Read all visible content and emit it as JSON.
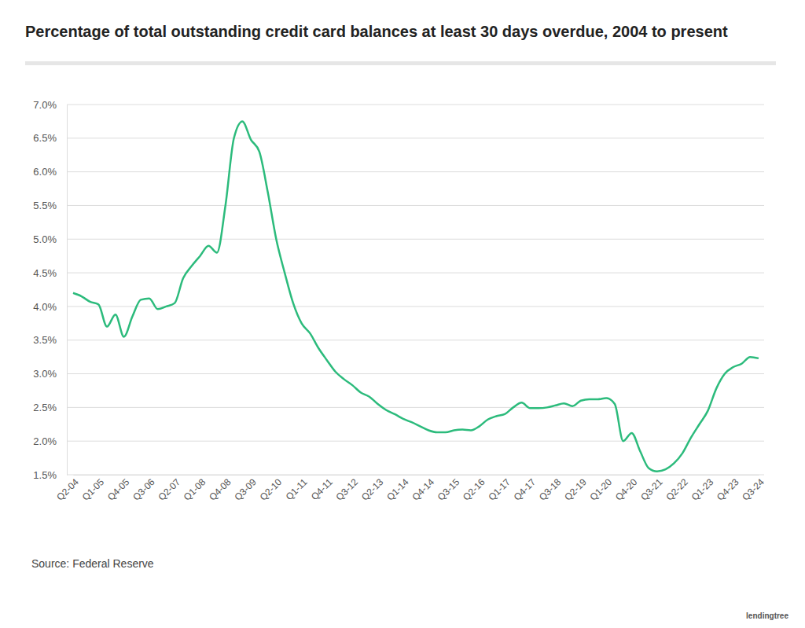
{
  "chart_data": {
    "type": "line",
    "title": "Percentage of total outstanding credit card balances at least 30 days overdue, 2004 to present",
    "source": "Source: Federal Reserve",
    "brand": "lendingtree",
    "color": "#2cbb7c",
    "grid": true,
    "categories": [
      "Q2-04",
      null,
      null,
      "Q1-05",
      null,
      null,
      "Q4-05",
      null,
      null,
      "Q3-06",
      null,
      null,
      "Q2-07",
      null,
      null,
      "Q1-08",
      null,
      null,
      "Q4-08",
      null,
      null,
      "Q3-09",
      null,
      null,
      "Q2-10",
      null,
      null,
      "Q1-11",
      null,
      null,
      "Q4-11",
      null,
      null,
      "Q3-12",
      null,
      null,
      "Q2-13",
      null,
      null,
      "Q1-14",
      null,
      null,
      "Q4-14",
      null,
      null,
      "Q3-15",
      null,
      null,
      "Q2-16",
      null,
      null,
      "Q1-17",
      null,
      null,
      "Q4-17",
      null,
      null,
      "Q3-18",
      null,
      null,
      "Q2-19",
      null,
      null,
      "Q1-20",
      null,
      null,
      "Q4-20",
      null,
      null,
      "Q3-21",
      null,
      null,
      "Q2-22",
      null,
      null,
      "Q1-23",
      null,
      null,
      "Q4-23",
      null,
      null,
      "Q3-24"
    ],
    "values": [
      4.2,
      4.15,
      4.07,
      4.03,
      3.7,
      3.88,
      3.55,
      3.85,
      4.1,
      4.12,
      3.96,
      4.0,
      4.05,
      4.42,
      4.6,
      4.75,
      4.9,
      4.8,
      5.5,
      6.5,
      6.75,
      6.48,
      6.3,
      5.7,
      5.0,
      4.5,
      4.05,
      3.75,
      3.6,
      3.38,
      3.2,
      3.03,
      2.92,
      2.83,
      2.72,
      2.66,
      2.55,
      2.46,
      2.4,
      2.33,
      2.28,
      2.22,
      2.16,
      2.13,
      2.13,
      2.16,
      2.17,
      2.16,
      2.22,
      2.32,
      2.37,
      2.4,
      2.5,
      2.57,
      2.49,
      2.49,
      2.5,
      2.53,
      2.56,
      2.52,
      2.6,
      2.62,
      2.62,
      2.64,
      2.55,
      2.0,
      2.12,
      1.85,
      1.6,
      1.55,
      1.58,
      1.67,
      1.82,
      2.05,
      2.25,
      2.45,
      2.78,
      3.0,
      3.1,
      3.15,
      3.25,
      3.23
    ],
    "ylim": [
      1.5,
      7.0
    ],
    "yticks": [
      {
        "value": 1.5,
        "label": "1.5%"
      },
      {
        "value": 2.0,
        "label": "2.0%"
      },
      {
        "value": 2.5,
        "label": "2.5%"
      },
      {
        "value": 3.0,
        "label": "3.0%"
      },
      {
        "value": 3.5,
        "label": "3.5%"
      },
      {
        "value": 4.0,
        "label": "4.0%"
      },
      {
        "value": 4.5,
        "label": "4.5%"
      },
      {
        "value": 5.0,
        "label": "5.0%"
      },
      {
        "value": 5.5,
        "label": "5.5%"
      },
      {
        "value": 6.0,
        "label": "6.0%"
      },
      {
        "value": 6.5,
        "label": "6.5%"
      },
      {
        "value": 7.0,
        "label": "7.0%"
      }
    ]
  }
}
